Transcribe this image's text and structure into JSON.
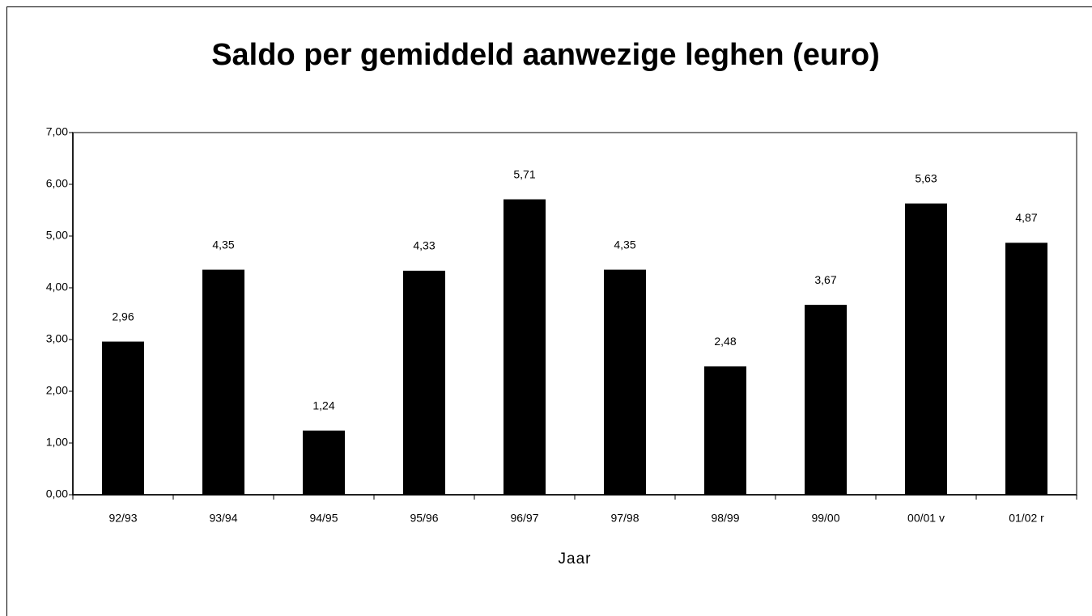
{
  "chart_data": {
    "type": "bar",
    "title": "Saldo per gemiddeld aanwezige leghen (euro)",
    "x_label": "Jaar",
    "categories": [
      "92/93",
      "93/94",
      "94/95",
      "95/96",
      "96/97",
      "97/98",
      "98/99",
      "99/00",
      "00/01 v",
      "01/02 r"
    ],
    "values": [
      2.96,
      4.35,
      1.24,
      4.33,
      5.71,
      4.35,
      2.48,
      3.67,
      5.63,
      4.87
    ],
    "value_labels": [
      "2,96",
      "4,35",
      "1,24",
      "4,33",
      "5,71",
      "4,35",
      "2,48",
      "3,67",
      "5,63",
      "4,87"
    ],
    "color": "#000000",
    "ylim": [
      0,
      7
    ],
    "yticks": [
      {
        "value": 0,
        "label": "0,00"
      },
      {
        "value": 1,
        "label": "1,00"
      },
      {
        "value": 2,
        "label": "2,00"
      },
      {
        "value": 3,
        "label": "3,00"
      },
      {
        "value": 4,
        "label": "4,00"
      },
      {
        "value": 5,
        "label": "5,00"
      },
      {
        "value": 6,
        "label": "6,00"
      },
      {
        "value": 7,
        "label": "7,00"
      }
    ],
    "grid": false
  }
}
